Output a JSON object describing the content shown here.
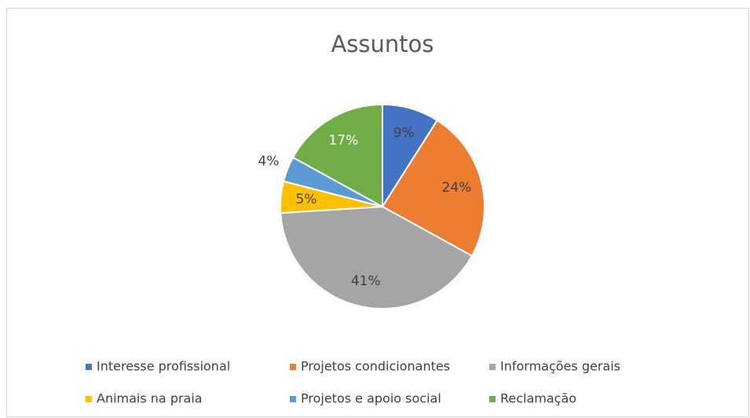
{
  "chart_data": {
    "type": "pie",
    "title": "Assuntos",
    "categories": [
      "Interesse profissional",
      "Projetos condicionantes",
      "Informações gerais",
      "Animais na praia",
      "Projetos e apoio social",
      "Reclamação"
    ],
    "values": [
      9,
      24,
      41,
      5,
      4,
      17
    ],
    "value_labels": [
      "9%",
      "24%",
      "41%",
      "5%",
      "4%",
      "17%"
    ],
    "colors": [
      "#4472c4",
      "#ed7d31",
      "#a5a5a5",
      "#ffc000",
      "#5b9bd5",
      "#70ad47"
    ],
    "legend": "bottom"
  }
}
